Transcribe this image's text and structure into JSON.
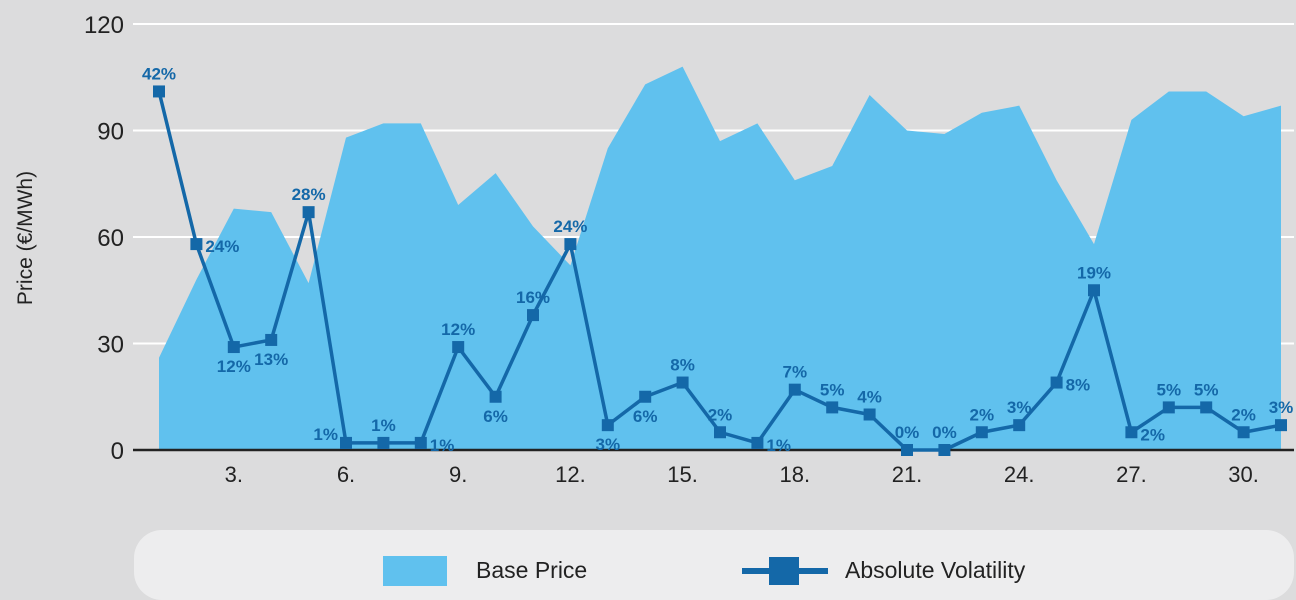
{
  "colors": {
    "background": "#dcdcdd",
    "area": "#60c1ee",
    "line": "#1468a8",
    "grid": "#ffffff",
    "legend_bg": "#ededee"
  },
  "chart_data": {
    "type": "area+line",
    "ylabel": "Price (€/MWh)",
    "ylim": [
      0,
      120
    ],
    "yticks": [
      0,
      30,
      60,
      90,
      120
    ],
    "xlim": [
      1,
      31
    ],
    "xticks": [
      {
        "x": 3,
        "label": "3."
      },
      {
        "x": 6,
        "label": "6."
      },
      {
        "x": 9,
        "label": "9."
      },
      {
        "x": 12,
        "label": "12."
      },
      {
        "x": 15,
        "label": "15."
      },
      {
        "x": 18,
        "label": "18."
      },
      {
        "x": 21,
        "label": "21."
      },
      {
        "x": 24,
        "label": "24."
      },
      {
        "x": 27,
        "label": "27."
      },
      {
        "x": 30,
        "label": "30."
      }
    ],
    "grid": true,
    "legend_position": "bottom",
    "x": [
      1,
      2,
      3,
      4,
      5,
      6,
      7,
      8,
      9,
      10,
      11,
      12,
      13,
      14,
      15,
      16,
      17,
      18,
      19,
      20,
      21,
      22,
      23,
      24,
      25,
      26,
      27,
      28,
      29,
      30,
      31
    ],
    "series": [
      {
        "name": "Base Price",
        "type": "area",
        "values": [
          26,
          48,
          68,
          67,
          47,
          88,
          92,
          92,
          69,
          78,
          63,
          52,
          85,
          103,
          108,
          87,
          92,
          76,
          80,
          100,
          90,
          89,
          95,
          97,
          76,
          58,
          93,
          101,
          101,
          94,
          97
        ]
      },
      {
        "name": "Absolute Volatility",
        "type": "line",
        "values": [
          101,
          58,
          29,
          31,
          67,
          2,
          2,
          2,
          29,
          15,
          38,
          58,
          7,
          15,
          19,
          5,
          2,
          17,
          12,
          10,
          0,
          0,
          5,
          7,
          19,
          45,
          5,
          12,
          12,
          5,
          7
        ],
        "labels": [
          "42%",
          "24%",
          "12%",
          "13%",
          "28%",
          "1%",
          "1%",
          "1%",
          "12%",
          "6%",
          "16%",
          "24%",
          "3%",
          "6%",
          "8%",
          "2%",
          "1%",
          "7%",
          "5%",
          "4%",
          "0%",
          "0%",
          "2%",
          "3%",
          "8%",
          "19%",
          "2%",
          "5%",
          "5%",
          "2%",
          "3%"
        ]
      }
    ]
  },
  "legend": {
    "area_label": "Base Price",
    "line_label": "Absolute Volatility"
  }
}
